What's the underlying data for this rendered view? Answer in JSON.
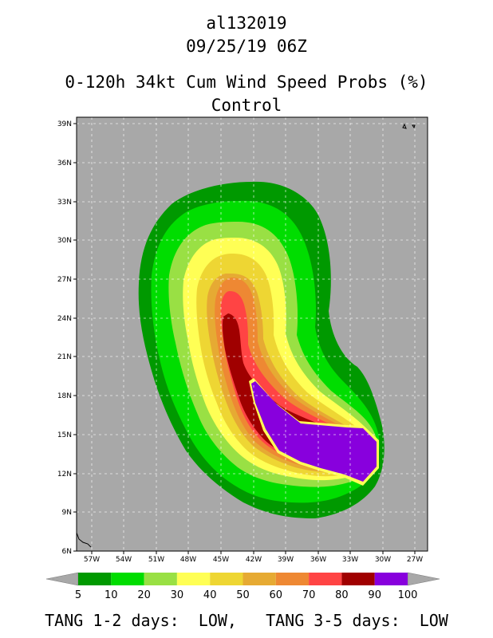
{
  "titles": {
    "storm_id": "al132019",
    "datetime": "09/25/19 06Z",
    "product": "0-120h 34kt Cum Wind Speed Probs (%)",
    "member": "Control"
  },
  "map": {
    "lat_labels": [
      "39N",
      "36N",
      "33N",
      "30N",
      "27N",
      "24N",
      "21N",
      "18N",
      "15N",
      "12N",
      "9N",
      "6N"
    ],
    "lon_labels": [
      "57W",
      "54W",
      "51W",
      "48W",
      "45W",
      "42W",
      "39W",
      "36W",
      "33W",
      "30W",
      "27W"
    ],
    "lat_range": [
      6,
      39.5
    ],
    "lon_range": [
      -59,
      -26
    ],
    "background_color": "#a8a8a8"
  },
  "colorbar": {
    "labels": [
      "5",
      "10",
      "20",
      "30",
      "40",
      "50",
      "60",
      "70",
      "80",
      "90",
      "100"
    ],
    "colors": [
      "#009900",
      "#00dd00",
      "#99e044",
      "#ffff55",
      "#eed633",
      "#e6aa33",
      "#ee8833",
      "#ff4444",
      "#a00000",
      "#8800dd"
    ]
  },
  "footer": {
    "text": "TANG 1-2 days:  LOW,   TANG 3-5 days:  LOW"
  }
}
